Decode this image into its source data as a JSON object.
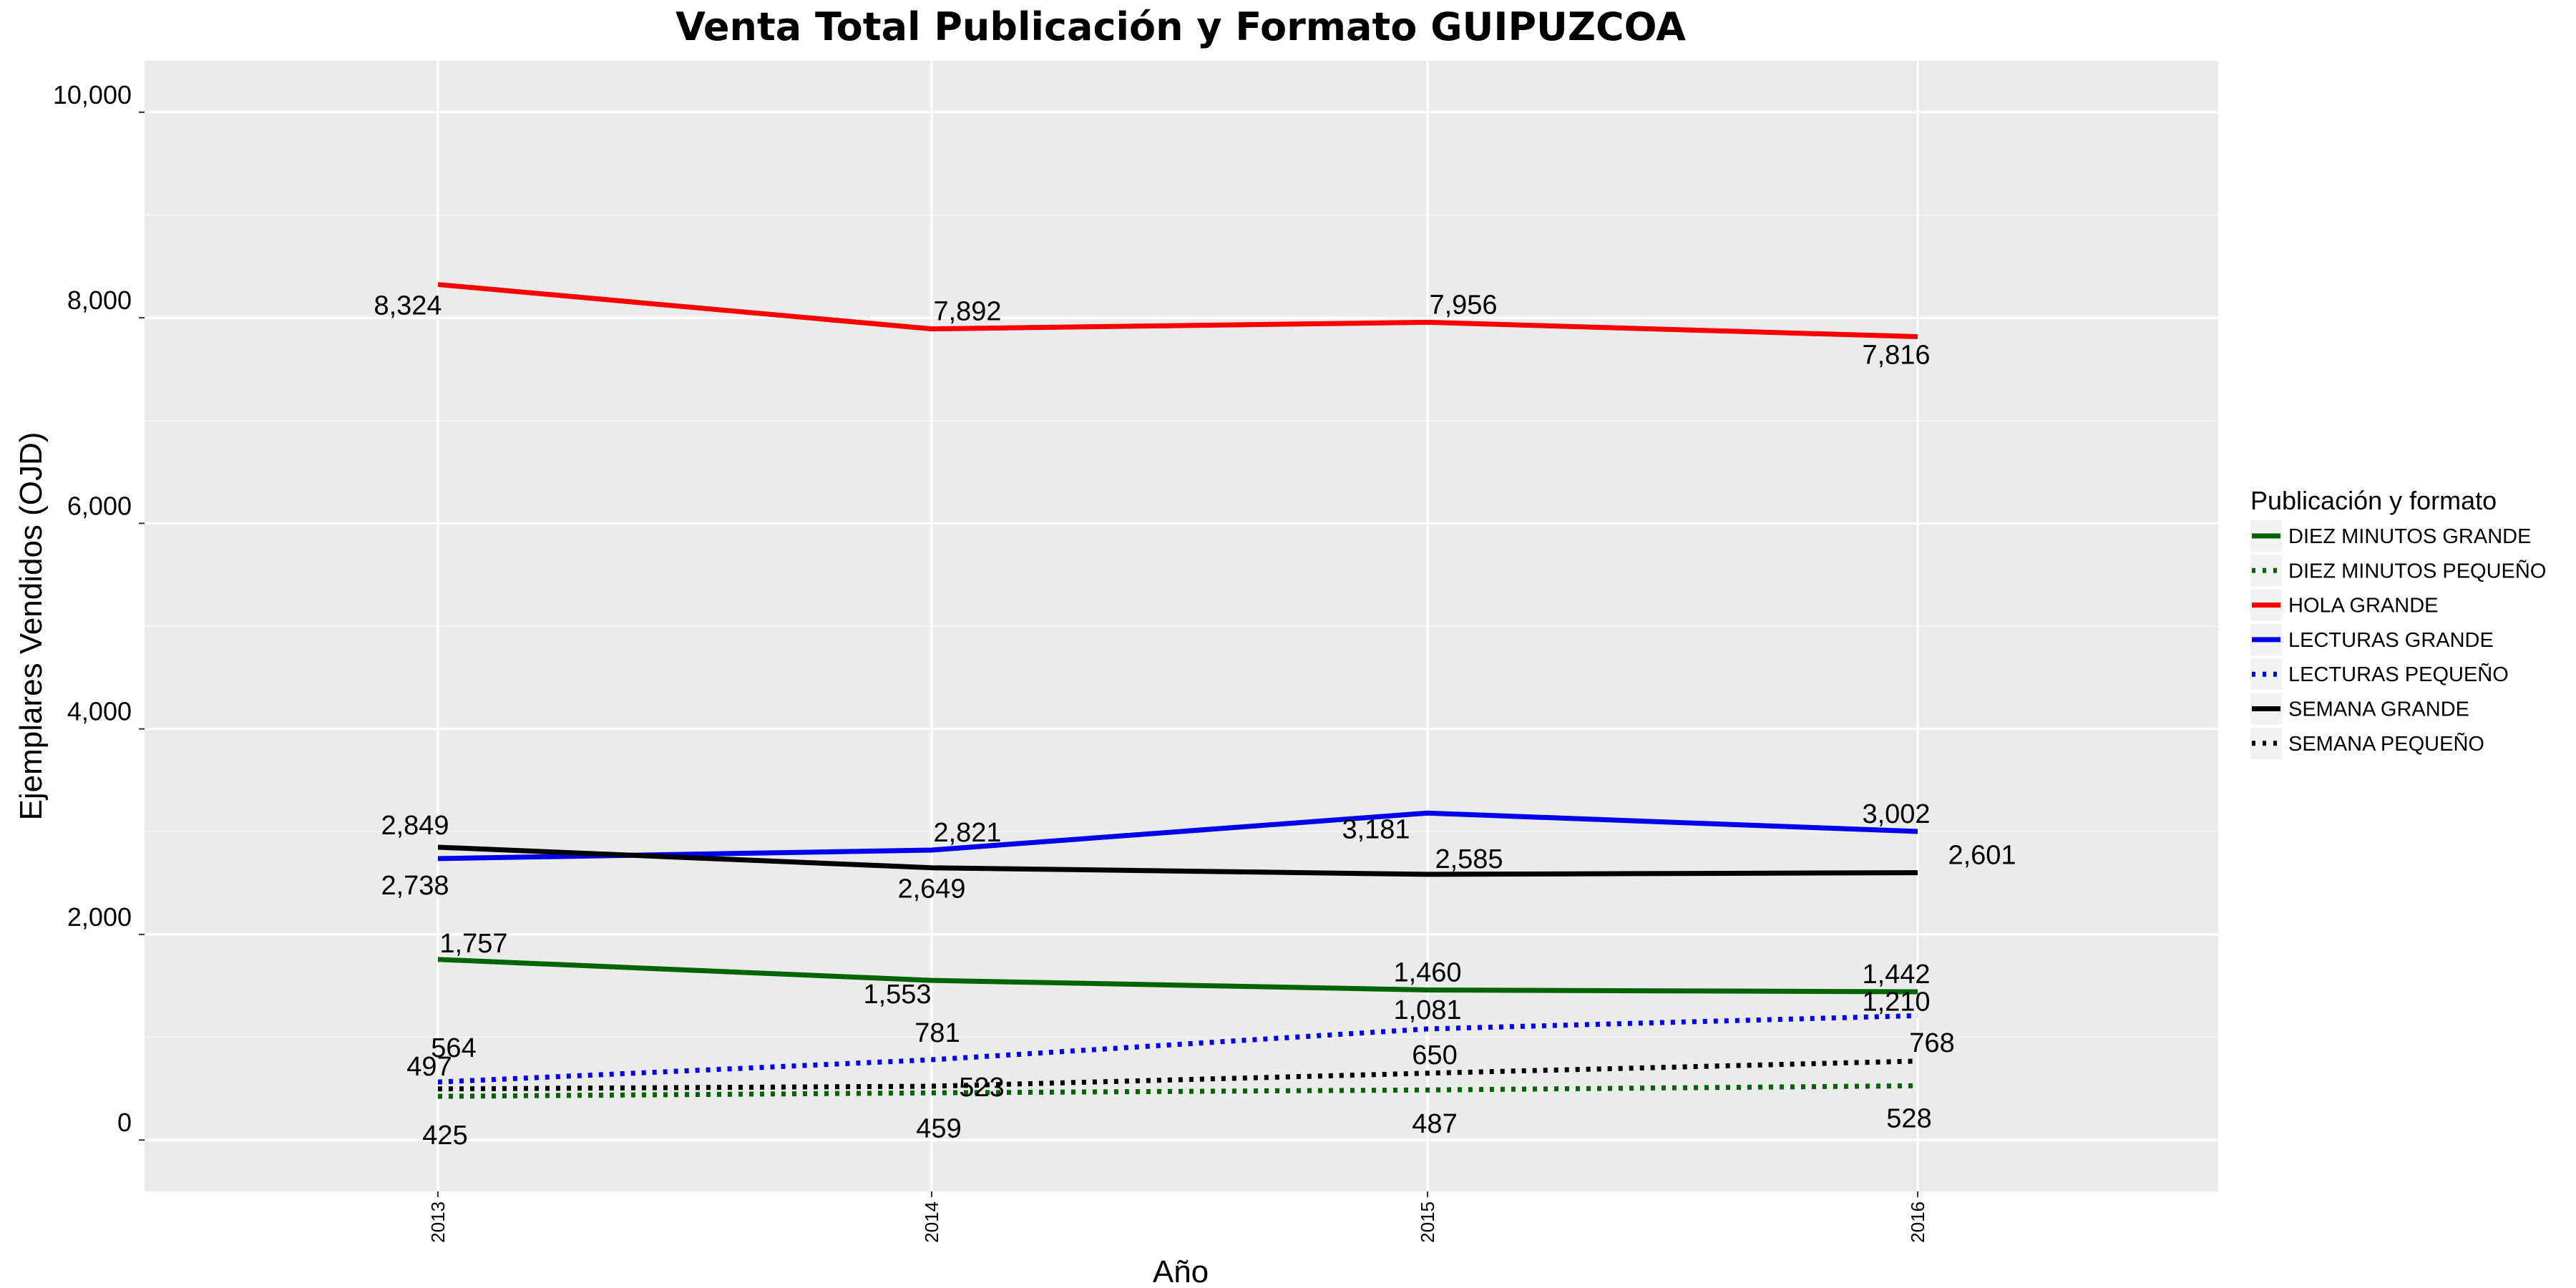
{
  "chart_data": {
    "type": "line",
    "title": "Venta Total Publicación y Formato  GUIPUZCOA",
    "xlabel": "Año",
    "ylabel": "Ejemplares Vendidos (OJD)",
    "x": [
      "2013",
      "2014",
      "2015",
      "2016"
    ],
    "ylim": [
      -500,
      10500
    ],
    "yticks": [
      0,
      2000,
      4000,
      6000,
      8000,
      10000
    ],
    "ytick_labels": [
      "0",
      "2,000",
      "4,000",
      "6,000",
      "8,000",
      "10,000"
    ],
    "grid": true,
    "legend": {
      "title": "Publicación y formato",
      "position": "right"
    },
    "series": [
      {
        "name": "DIEZ MINUTOS GRANDE",
        "values": [
          1757,
          1553,
          1460,
          1442
        ],
        "labels": [
          "1,757",
          "1,553",
          "1,460",
          "1,442"
        ],
        "color": "#006400",
        "style": "solid"
      },
      {
        "name": "DIEZ MINUTOS PEQUEÑO",
        "values": [
          425,
          459,
          487,
          528
        ],
        "labels": [
          "425",
          "459",
          "487",
          "528"
        ],
        "color": "#006400",
        "style": "dotted"
      },
      {
        "name": "HOLA GRANDE",
        "values": [
          8324,
          7892,
          7956,
          7816
        ],
        "labels": [
          "8,324",
          "7,892",
          "7,956",
          "7,816"
        ],
        "color": "#ff0000",
        "style": "solid"
      },
      {
        "name": "LECTURAS GRANDE",
        "values": [
          2738,
          2821,
          3181,
          3002
        ],
        "labels": [
          "2,738",
          "2,821",
          "3,181",
          "3,002"
        ],
        "color": "#0000ee",
        "style": "solid"
      },
      {
        "name": "LECTURAS PEQUEÑO",
        "values": [
          564,
          781,
          1081,
          1210
        ],
        "labels": [
          "564",
          "781",
          "1,081",
          "1,210"
        ],
        "color": "#0000ee",
        "style": "dotted"
      },
      {
        "name": "SEMANA GRANDE",
        "values": [
          2849,
          2649,
          2585,
          2601
        ],
        "labels": [
          "2,849",
          "2,649",
          "2,585",
          "2,601"
        ],
        "color": "#000000",
        "style": "solid"
      },
      {
        "name": "SEMANA PEQUEÑO",
        "values": [
          497,
          523,
          650,
          768
        ],
        "labels": [
          "497",
          "523",
          "650",
          "768"
        ],
        "color": "#000000",
        "style": "dotted"
      }
    ]
  }
}
